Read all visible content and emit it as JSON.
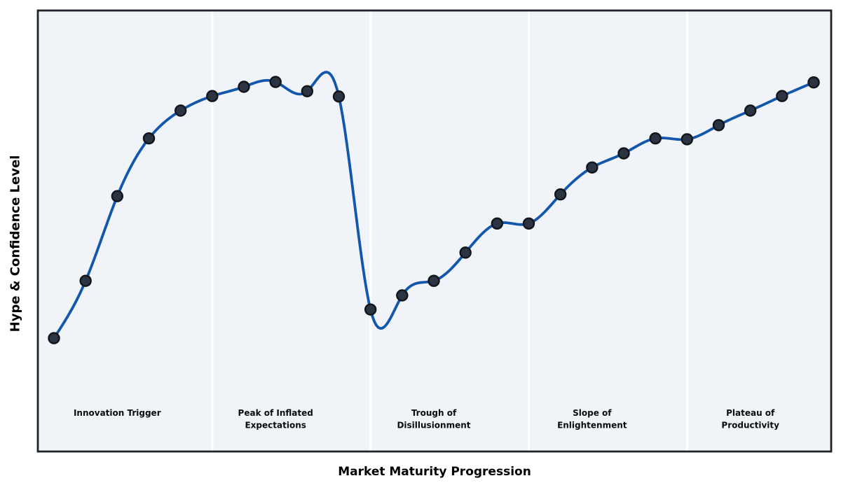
{
  "chart_data": {
    "type": "line",
    "title": "",
    "xlabel": "Market Maturity Progression",
    "ylabel": "Hype & Confidence Level",
    "x": [
      0,
      1,
      2,
      3,
      4,
      5,
      6,
      7,
      8,
      9,
      10,
      11,
      12,
      13,
      14,
      15,
      16,
      17,
      18,
      19,
      20,
      21,
      22,
      23,
      24
    ],
    "series": [
      {
        "values": [
          25.7,
          38.7,
          57.9,
          71.0,
          77.3,
          80.6,
          82.7,
          83.8,
          81.7,
          80.5,
          32.2,
          35.4,
          38.7,
          45.1,
          51.7,
          51.7,
          58.3,
          64.4,
          67.6,
          71.0,
          70.8,
          74.0,
          77.3,
          80.6,
          83.7
        ]
      }
    ],
    "xlim": [
      -0.5,
      24.5
    ],
    "ylim": [
      0,
      100
    ],
    "grid": false,
    "legend": "none",
    "axis_ticks": "none",
    "smoothing": "cubic-spline",
    "markers": true,
    "phases": [
      {
        "lines": [
          "Innovation Trigger"
        ],
        "start": -0.5,
        "end": 5,
        "label_x": 2
      },
      {
        "lines": [
          "Peak of Inflated",
          "Expectations"
        ],
        "start": 5,
        "end": 10,
        "label_x": 7
      },
      {
        "lines": [
          "Trough of",
          "Disillusionment"
        ],
        "start": 10,
        "end": 15,
        "label_x": 12
      },
      {
        "lines": [
          "Slope of",
          "Enlightenment"
        ],
        "start": 15,
        "end": 20,
        "label_x": 17
      },
      {
        "lines": [
          "Plateau of",
          "Productivity"
        ],
        "start": 20,
        "end": 24.5,
        "label_x": 22
      }
    ],
    "colors": {
      "line": "#1257ab",
      "marker_fill": "#2b3442",
      "marker_edge": "#11151b",
      "plot_bg": "#f0f4f8",
      "divider": "#ffffff",
      "border": "#1f2329",
      "text": "#000000"
    }
  }
}
